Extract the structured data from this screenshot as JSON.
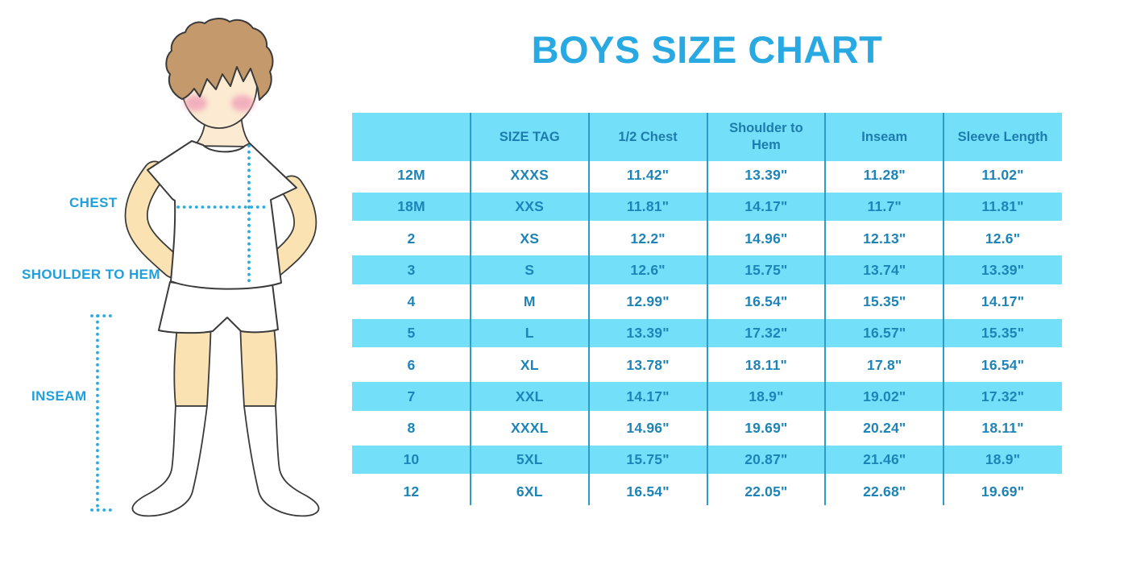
{
  "title": "BOYS SIZE CHART",
  "figure": {
    "description": "cartoon boy in white t-shirt, shorts and knee socks with dotted measurement guides",
    "labels": {
      "chest": "CHEST",
      "shoulder_to_hem": "SHOULDER TO HEM",
      "inseam": "INSEAM"
    }
  },
  "table": {
    "columns": [
      "",
      "SIZE TAG",
      "1/2 Chest",
      "Shoulder to Hem",
      "Inseam",
      "Sleeve Length"
    ],
    "rows": [
      {
        "size": "12M",
        "tag": "XXXS",
        "chest": "11.42\"",
        "shoulder_to_hem": "13.39\"",
        "inseam": "11.28\"",
        "sleeve": "11.02\""
      },
      {
        "size": "18M",
        "tag": "XXS",
        "chest": "11.81\"",
        "shoulder_to_hem": "14.17\"",
        "inseam": "11.7\"",
        "sleeve": "11.81\""
      },
      {
        "size": "2",
        "tag": "XS",
        "chest": "12.2\"",
        "shoulder_to_hem": "14.96\"",
        "inseam": "12.13\"",
        "sleeve": "12.6\""
      },
      {
        "size": "3",
        "tag": "S",
        "chest": "12.6\"",
        "shoulder_to_hem": "15.75\"",
        "inseam": "13.74\"",
        "sleeve": "13.39\""
      },
      {
        "size": "4",
        "tag": "M",
        "chest": "12.99\"",
        "shoulder_to_hem": "16.54\"",
        "inseam": "15.35\"",
        "sleeve": "14.17\""
      },
      {
        "size": "5",
        "tag": "L",
        "chest": "13.39\"",
        "shoulder_to_hem": "17.32\"",
        "inseam": "16.57\"",
        "sleeve": "15.35\""
      },
      {
        "size": "6",
        "tag": "XL",
        "chest": "13.78\"",
        "shoulder_to_hem": "18.11\"",
        "inseam": "17.8\"",
        "sleeve": "16.54\""
      },
      {
        "size": "7",
        "tag": "XXL",
        "chest": "14.17\"",
        "shoulder_to_hem": "18.9\"",
        "inseam": "19.02\"",
        "sleeve": "17.32\""
      },
      {
        "size": "8",
        "tag": "XXXL",
        "chest": "14.96\"",
        "shoulder_to_hem": "19.69\"",
        "inseam": "20.24\"",
        "sleeve": "18.11\""
      },
      {
        "size": "10",
        "tag": "5XL",
        "chest": "15.75\"",
        "shoulder_to_hem": "20.87\"",
        "inseam": "21.46\"",
        "sleeve": "18.9\""
      },
      {
        "size": "12",
        "tag": "6XL",
        "chest": "16.54\"",
        "shoulder_to_hem": "22.05\"",
        "inseam": "22.68\"",
        "sleeve": "19.69\""
      }
    ]
  },
  "colors": {
    "accent_blue": "#29a9e1",
    "stripe_blue": "#74dff9",
    "table_text_blue": "#1e84b8",
    "column_line_blue": "#2e9ccb",
    "label_blue": "#1f9fdc",
    "dotted_line_blue": "#2aabe2",
    "hair_brown": "#c49a6c",
    "skin": "#fae2b2",
    "face_skin": "#fcebd2",
    "blush_pink": "#f0a0b8"
  }
}
